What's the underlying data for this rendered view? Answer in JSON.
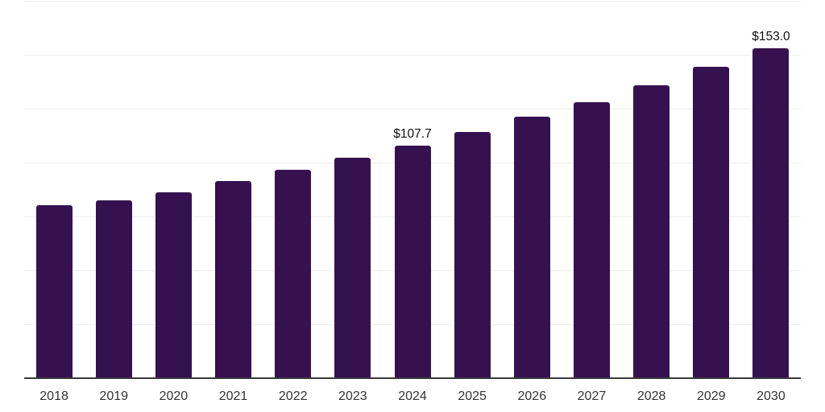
{
  "chart_data": {
    "type": "bar",
    "title": "",
    "xlabel": "",
    "ylabel": "",
    "categories": [
      "2018",
      "2019",
      "2020",
      "2021",
      "2022",
      "2023",
      "2024",
      "2025",
      "2026",
      "2027",
      "2028",
      "2029",
      "2030"
    ],
    "values": [
      80.3,
      82.4,
      86.1,
      91.3,
      96.6,
      102.4,
      107.7,
      114.3,
      121.1,
      128.1,
      135.8,
      144.5,
      153.0
    ],
    "points": [
      {
        "year": "2018",
        "value": 80.3
      },
      {
        "year": "2019",
        "value": 82.4
      },
      {
        "year": "2020",
        "value": 86.1
      },
      {
        "year": "2021",
        "value": 91.3
      },
      {
        "year": "2022",
        "value": 96.6
      },
      {
        "year": "2023",
        "value": 102.4
      },
      {
        "year": "2024",
        "value": 107.7,
        "label": "$107.7"
      },
      {
        "year": "2025",
        "value": 114.3
      },
      {
        "year": "2026",
        "value": 121.1
      },
      {
        "year": "2027",
        "value": 128.1
      },
      {
        "year": "2028",
        "value": 135.8
      },
      {
        "year": "2029",
        "value": 144.5
      },
      {
        "year": "2030",
        "value": 153.0,
        "label": "$153.0"
      }
    ],
    "ylim": [
      0,
      175
    ],
    "gridline_step": 25,
    "grid": true,
    "y_tick_labels_shown": false,
    "legend": "none",
    "colors": {
      "bar": "#361150",
      "axis_line": "#3a3a3a",
      "gridline": "#ededed",
      "tick_label": "#333333",
      "data_label": "#111111",
      "background": "#ffffff"
    }
  }
}
